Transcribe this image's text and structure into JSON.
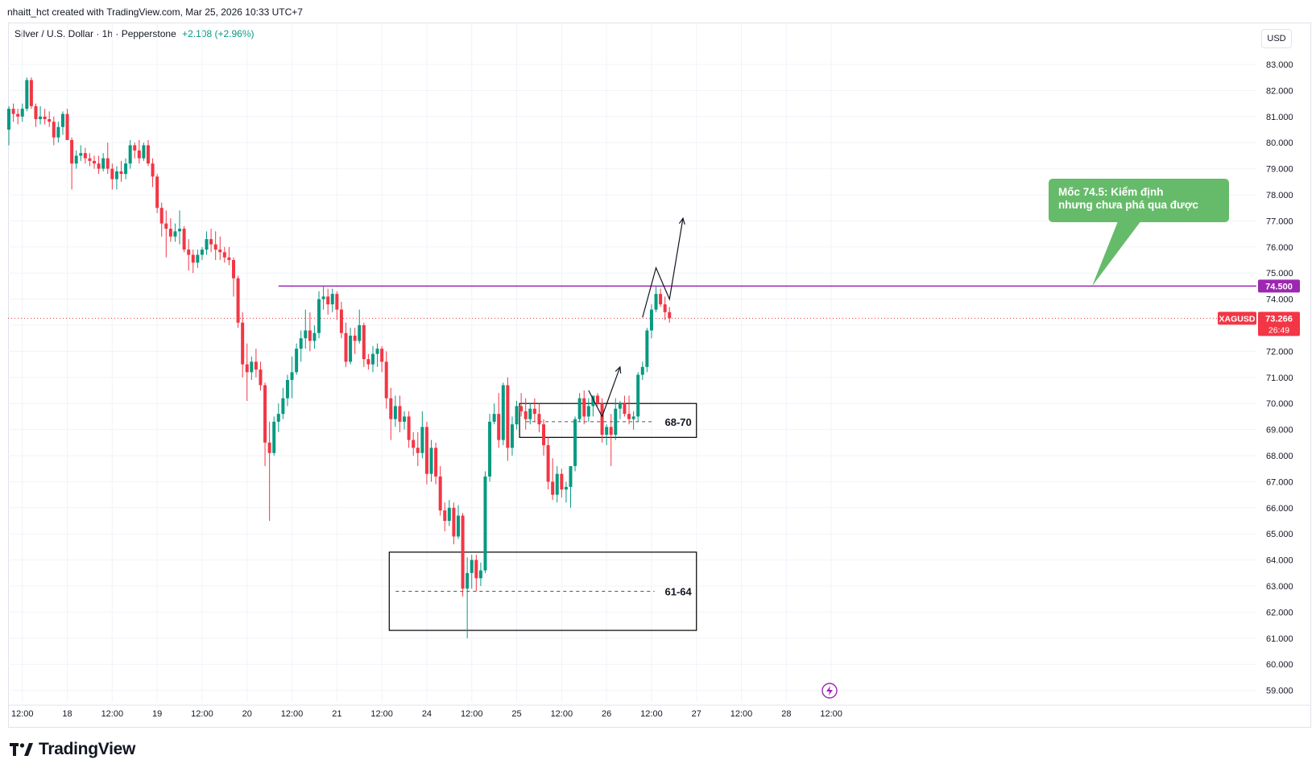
{
  "header": {
    "credit": "nhaitt_hct created with TradingView.com, Mar 25, 2026 10:33 UTC+7",
    "symbol": "Silver / U.S. Dollar · 1h · Pepperstone",
    "change": "+2.108 (+2.96%)",
    "currency": "USD"
  },
  "brand": {
    "name": "TradingView",
    "icon": "tradingview-logo-icon"
  },
  "annotation": {
    "line1": "Mốc 74.5: Kiểm định",
    "line2": "nhưng chưa phá qua được"
  },
  "labels": {
    "level": "74.500",
    "ticker": "XAGUSD",
    "price": "73.266",
    "countdown": "26:49",
    "zone_upper": "68-70",
    "zone_lower": "61-64"
  },
  "colors": {
    "up": "#089981",
    "down": "#f23645",
    "resistance": "#9c27b0",
    "bubble": "#66bb6a"
  },
  "chart_data": {
    "type": "candlestick",
    "title": "Silver / U.S. Dollar · 1h · Pepperstone",
    "ylim": [
      58.5,
      84.0
    ],
    "yticks": [
      59,
      60,
      61,
      62,
      63,
      64,
      65,
      66,
      67,
      68,
      69,
      70,
      71,
      72,
      73,
      74,
      75,
      76,
      77,
      78,
      79,
      80,
      81,
      82,
      83
    ],
    "x_index_range": [
      0,
      147
    ],
    "xticks": [
      {
        "i": 3,
        "label": "12:00"
      },
      {
        "i": 13,
        "label": "18"
      },
      {
        "i": 23,
        "label": "12:00"
      },
      {
        "i": 33,
        "label": "19"
      },
      {
        "i": 43,
        "label": "12:00"
      },
      {
        "i": 53,
        "label": "20"
      },
      {
        "i": 63,
        "label": "12:00"
      },
      {
        "i": 73,
        "label": "21"
      },
      {
        "i": 83,
        "label": "12:00"
      },
      {
        "i": 93,
        "label": "24"
      },
      {
        "i": 103,
        "label": "12:00"
      },
      {
        "i": 113,
        "label": "25"
      },
      {
        "i": 123,
        "label": "12:00"
      },
      {
        "i": 133,
        "label": "26"
      },
      {
        "i": 143,
        "label": "12:00"
      },
      {
        "i": 153,
        "label": "27"
      },
      {
        "i": 163,
        "label": "12:00"
      },
      {
        "i": 173,
        "label": "28"
      },
      {
        "i": 183,
        "label": "12:00"
      }
    ],
    "candles": [
      [
        80.5,
        81.4,
        79.9,
        81.3
      ],
      [
        81.3,
        81.5,
        80.8,
        81.1
      ],
      [
        81.1,
        81.3,
        80.7,
        81.0
      ],
      [
        81.0,
        81.5,
        80.8,
        81.3
      ],
      [
        81.3,
        82.5,
        81.2,
        82.4
      ],
      [
        82.4,
        82.5,
        81.3,
        81.4
      ],
      [
        81.4,
        81.5,
        80.6,
        80.9
      ],
      [
        80.9,
        81.4,
        80.7,
        81.0
      ],
      [
        81.0,
        81.3,
        80.7,
        80.9
      ],
      [
        80.9,
        81.2,
        80.6,
        80.8
      ],
      [
        80.8,
        81.0,
        79.9,
        80.2
      ],
      [
        80.2,
        80.8,
        80.0,
        80.6
      ],
      [
        80.6,
        81.2,
        80.3,
        81.1
      ],
      [
        81.1,
        81.3,
        80.2,
        80.1
      ],
      [
        80.1,
        80.2,
        78.2,
        79.2
      ],
      [
        79.2,
        79.7,
        79.0,
        79.5
      ],
      [
        79.5,
        79.9,
        79.3,
        79.6
      ],
      [
        79.6,
        79.8,
        79.2,
        79.4
      ],
      [
        79.4,
        79.6,
        79.1,
        79.3
      ],
      [
        79.3,
        79.5,
        79.0,
        79.2
      ],
      [
        79.2,
        79.5,
        78.8,
        79.0
      ],
      [
        79.0,
        79.6,
        78.9,
        79.4
      ],
      [
        79.4,
        80.0,
        78.8,
        79.0
      ],
      [
        79.0,
        79.2,
        78.2,
        78.6
      ],
      [
        78.6,
        79.1,
        78.2,
        78.9
      ],
      [
        78.9,
        79.3,
        78.5,
        78.8
      ],
      [
        78.8,
        79.4,
        78.6,
        79.2
      ],
      [
        79.2,
        80.1,
        79.0,
        79.9
      ],
      [
        79.9,
        80.0,
        79.4,
        79.7
      ],
      [
        79.7,
        80.1,
        79.2,
        79.4
      ],
      [
        79.4,
        80.0,
        79.3,
        79.9
      ],
      [
        79.9,
        80.1,
        79.1,
        79.2
      ],
      [
        79.2,
        79.4,
        78.3,
        78.7
      ],
      [
        78.7,
        78.8,
        77.3,
        77.5
      ],
      [
        77.5,
        77.7,
        76.4,
        76.9
      ],
      [
        76.9,
        77.4,
        75.6,
        76.7
      ],
      [
        76.7,
        77.1,
        76.2,
        76.4
      ],
      [
        76.4,
        76.9,
        76.2,
        76.6
      ],
      [
        76.6,
        77.4,
        76.1,
        76.7
      ],
      [
        76.7,
        76.8,
        75.8,
        75.9
      ],
      [
        75.9,
        76.3,
        75.1,
        75.7
      ],
      [
        75.7,
        75.9,
        75.0,
        75.4
      ],
      [
        75.4,
        75.9,
        75.2,
        75.7
      ],
      [
        75.7,
        76.0,
        75.5,
        75.9
      ],
      [
        75.9,
        76.6,
        75.7,
        76.3
      ],
      [
        76.3,
        76.7,
        75.8,
        76.1
      ],
      [
        76.1,
        76.6,
        75.5,
        75.9
      ],
      [
        75.9,
        76.4,
        75.5,
        75.8
      ],
      [
        75.8,
        76.0,
        75.4,
        75.6
      ],
      [
        75.6,
        76.0,
        75.3,
        75.5
      ],
      [
        75.5,
        75.6,
        74.1,
        74.8
      ],
      [
        74.8,
        74.9,
        72.9,
        73.1
      ],
      [
        73.1,
        73.5,
        71.0,
        71.5
      ],
      [
        71.5,
        72.3,
        70.1,
        71.2
      ],
      [
        71.2,
        71.8,
        70.9,
        71.6
      ],
      [
        71.6,
        72.1,
        71.0,
        71.3
      ],
      [
        71.3,
        71.6,
        70.5,
        70.7
      ],
      [
        70.7,
        70.8,
        67.6,
        68.5
      ],
      [
        68.5,
        69.3,
        65.5,
        68.1
      ],
      [
        68.1,
        69.5,
        68.0,
        69.3
      ],
      [
        69.3,
        70.0,
        68.9,
        69.6
      ],
      [
        69.6,
        70.6,
        69.4,
        70.2
      ],
      [
        70.2,
        71.1,
        69.9,
        70.9
      ],
      [
        70.9,
        71.8,
        70.2,
        71.2
      ],
      [
        71.2,
        72.3,
        71.1,
        72.1
      ],
      [
        72.1,
        72.8,
        71.6,
        72.5
      ],
      [
        72.5,
        73.6,
        72.1,
        72.8
      ],
      [
        72.8,
        73.5,
        72.0,
        72.4
      ],
      [
        72.4,
        73.0,
        72.1,
        72.7
      ],
      [
        72.7,
        74.3,
        72.5,
        74.0
      ],
      [
        74.0,
        74.5,
        73.6,
        74.1
      ],
      [
        74.1,
        74.4,
        73.4,
        73.8
      ],
      [
        73.8,
        74.4,
        73.5,
        74.2
      ],
      [
        74.2,
        74.3,
        73.2,
        73.6
      ],
      [
        73.6,
        73.9,
        72.5,
        72.7
      ],
      [
        72.7,
        73.1,
        71.4,
        71.6
      ],
      [
        71.6,
        72.9,
        71.5,
        72.6
      ],
      [
        72.6,
        72.9,
        71.9,
        72.4
      ],
      [
        72.4,
        73.6,
        72.3,
        73.0
      ],
      [
        73.0,
        73.1,
        71.4,
        71.7
      ],
      [
        71.7,
        71.9,
        71.3,
        71.5
      ],
      [
        71.5,
        72.2,
        71.2,
        71.9
      ],
      [
        71.9,
        72.3,
        71.4,
        72.1
      ],
      [
        72.1,
        72.2,
        71.2,
        71.6
      ],
      [
        71.6,
        72.0,
        69.8,
        70.2
      ],
      [
        70.2,
        70.6,
        68.6,
        69.4
      ],
      [
        69.4,
        70.3,
        69.1,
        69.9
      ],
      [
        69.9,
        70.3,
        68.9,
        69.3
      ],
      [
        69.3,
        69.7,
        69.0,
        69.5
      ],
      [
        69.5,
        69.7,
        68.3,
        68.6
      ],
      [
        68.6,
        68.9,
        68.0,
        68.3
      ],
      [
        68.3,
        68.9,
        67.6,
        68.1
      ],
      [
        68.1,
        69.7,
        67.9,
        69.1
      ],
      [
        69.1,
        69.3,
        66.9,
        67.3
      ],
      [
        67.3,
        68.6,
        67.0,
        68.3
      ],
      [
        68.3,
        68.5,
        66.9,
        67.2
      ],
      [
        67.2,
        67.6,
        65.7,
        65.9
      ],
      [
        65.9,
        66.2,
        65.1,
        65.5
      ],
      [
        65.5,
        66.3,
        65.3,
        66.0
      ],
      [
        66.0,
        66.2,
        64.6,
        64.9
      ],
      [
        64.9,
        66.1,
        64.8,
        65.7
      ],
      [
        65.7,
        65.8,
        62.6,
        62.9
      ],
      [
        62.9,
        64.1,
        61.0,
        63.5
      ],
      [
        63.5,
        64.2,
        62.9,
        64.0
      ],
      [
        64.0,
        64.2,
        62.8,
        63.3
      ],
      [
        63.3,
        63.9,
        63.0,
        63.6
      ],
      [
        63.6,
        67.4,
        63.5,
        67.2
      ],
      [
        67.2,
        69.6,
        67.0,
        69.3
      ],
      [
        69.3,
        70.0,
        69.2,
        69.6
      ],
      [
        69.6,
        70.4,
        68.3,
        68.6
      ],
      [
        68.6,
        70.8,
        68.4,
        70.7
      ],
      [
        70.7,
        71.0,
        67.8,
        68.3
      ],
      [
        68.3,
        69.5,
        68.0,
        69.2
      ],
      [
        69.2,
        70.1,
        69.0,
        69.9
      ],
      [
        69.9,
        70.4,
        69.5,
        69.7
      ],
      [
        69.7,
        70.2,
        69.0,
        69.4
      ],
      [
        69.4,
        70.0,
        69.2,
        69.8
      ],
      [
        69.8,
        70.2,
        69.3,
        69.6
      ],
      [
        69.6,
        70.0,
        68.9,
        69.2
      ],
      [
        69.2,
        69.4,
        68.0,
        68.4
      ],
      [
        68.4,
        68.7,
        66.7,
        67.0
      ],
      [
        67.0,
        67.9,
        66.3,
        66.5
      ],
      [
        66.5,
        67.6,
        66.2,
        67.3
      ],
      [
        67.3,
        67.5,
        66.4,
        66.7
      ],
      [
        66.7,
        67.0,
        66.2,
        66.8
      ],
      [
        66.8,
        67.4,
        66.0,
        67.6
      ],
      [
        67.6,
        69.5,
        67.4,
        69.4
      ],
      [
        69.4,
        70.4,
        69.3,
        70.2
      ],
      [
        70.2,
        70.5,
        69.2,
        69.5
      ],
      [
        69.5,
        70.2,
        69.3,
        69.9
      ],
      [
        69.9,
        70.3,
        69.5,
        70.3
      ],
      [
        70.3,
        70.4,
        69.9,
        70.0
      ],
      [
        70.0,
        70.2,
        68.5,
        68.8
      ],
      [
        68.8,
        69.2,
        68.4,
        69.1
      ],
      [
        69.1,
        69.6,
        67.6,
        68.8
      ],
      [
        68.8,
        70.2,
        68.6,
        69.8
      ],
      [
        69.8,
        70.1,
        69.4,
        70.0
      ],
      [
        70.0,
        70.3,
        69.5,
        69.6
      ],
      [
        69.6,
        70.3,
        69.2,
        69.4
      ],
      [
        69.4,
        69.7,
        69.0,
        69.5
      ],
      [
        69.5,
        71.2,
        69.3,
        71.1
      ],
      [
        71.1,
        71.6,
        70.9,
        71.4
      ],
      [
        71.4,
        72.9,
        71.2,
        72.8
      ],
      [
        72.8,
        73.8,
        72.5,
        73.6
      ],
      [
        73.6,
        74.5,
        73.5,
        74.2
      ],
      [
        74.2,
        74.4,
        73.7,
        73.8
      ],
      [
        73.8,
        74.1,
        73.2,
        73.5
      ],
      [
        73.5,
        73.7,
        73.1,
        73.27
      ]
    ],
    "resistance": {
      "price": 74.5,
      "from_index": 60
    },
    "zones": [
      {
        "label": "68-70",
        "top": 70.0,
        "bottom": 68.7,
        "mid": 69.3,
        "from_index": 114,
        "to_index": 153
      },
      {
        "label": "61-64",
        "top": 64.3,
        "bottom": 61.3,
        "mid": 62.8,
        "from_index": 85,
        "to_index": 153
      }
    ],
    "scenario_paths": [
      {
        "points": [
          [
            129,
            70.5
          ],
          [
            132,
            69.5
          ],
          [
            136,
            71.4
          ]
        ],
        "arrow": true
      },
      {
        "points": [
          [
            141,
            73.3
          ],
          [
            144,
            75.2
          ],
          [
            147,
            74.0
          ],
          [
            150,
            77.1
          ]
        ],
        "arrow": true
      }
    ],
    "current_price": 73.266
  }
}
